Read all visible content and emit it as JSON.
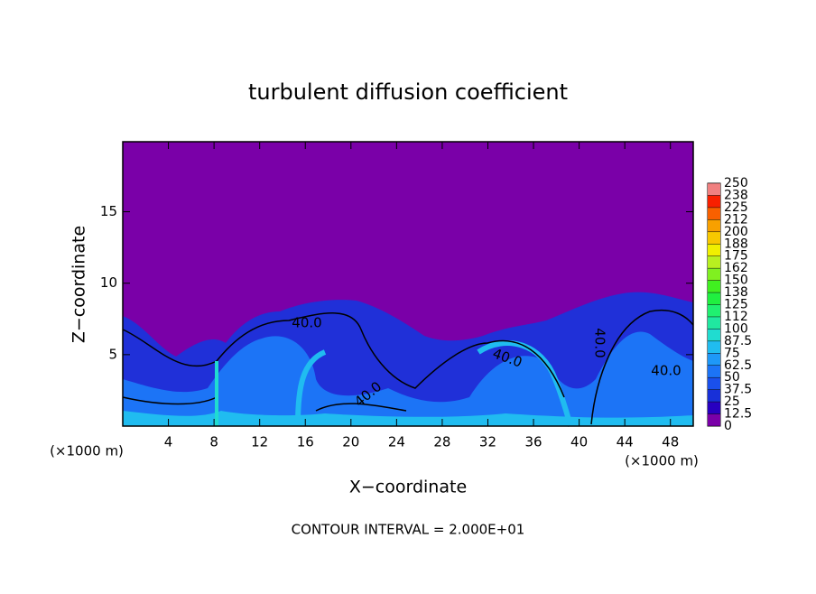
{
  "chart_data": {
    "type": "contour",
    "title": "turbulent diffusion coefficient",
    "x_label": "X−coordinate",
    "y_label": "Z−coordinate",
    "x_unit": "(×1000 m)",
    "footnote": "CONTOUR INTERVAL = 2.000E+01",
    "xlim": [
      0,
      50
    ],
    "xticks": [
      4,
      8,
      12,
      16,
      20,
      24,
      28,
      32,
      36,
      40,
      44,
      48
    ],
    "ylim": [
      0,
      19.9
    ],
    "yticks": [
      5,
      10,
      15
    ],
    "contour_labels": [
      "40.0",
      "40.0",
      "40.0",
      "40.0",
      "40.0"
    ],
    "colorbar": {
      "ticks": [
        0,
        12.5,
        25,
        37.5,
        50,
        62.5,
        75,
        87.5,
        100,
        112,
        125,
        138,
        150,
        162,
        175,
        188,
        200,
        212,
        225,
        238,
        250
      ],
      "colors": [
        "#7a00a8",
        "#2800c0",
        "#1830d8",
        "#1a50ec",
        "#1c74f6",
        "#1e98f8",
        "#20bcf0",
        "#20dcd0",
        "#20e8a0",
        "#20f070",
        "#20f040",
        "#40f020",
        "#80f020",
        "#b8f020",
        "#f0f000",
        "#f8c800",
        "#f8a000",
        "#f86000",
        "#f82000",
        "#f08080"
      ]
    }
  }
}
